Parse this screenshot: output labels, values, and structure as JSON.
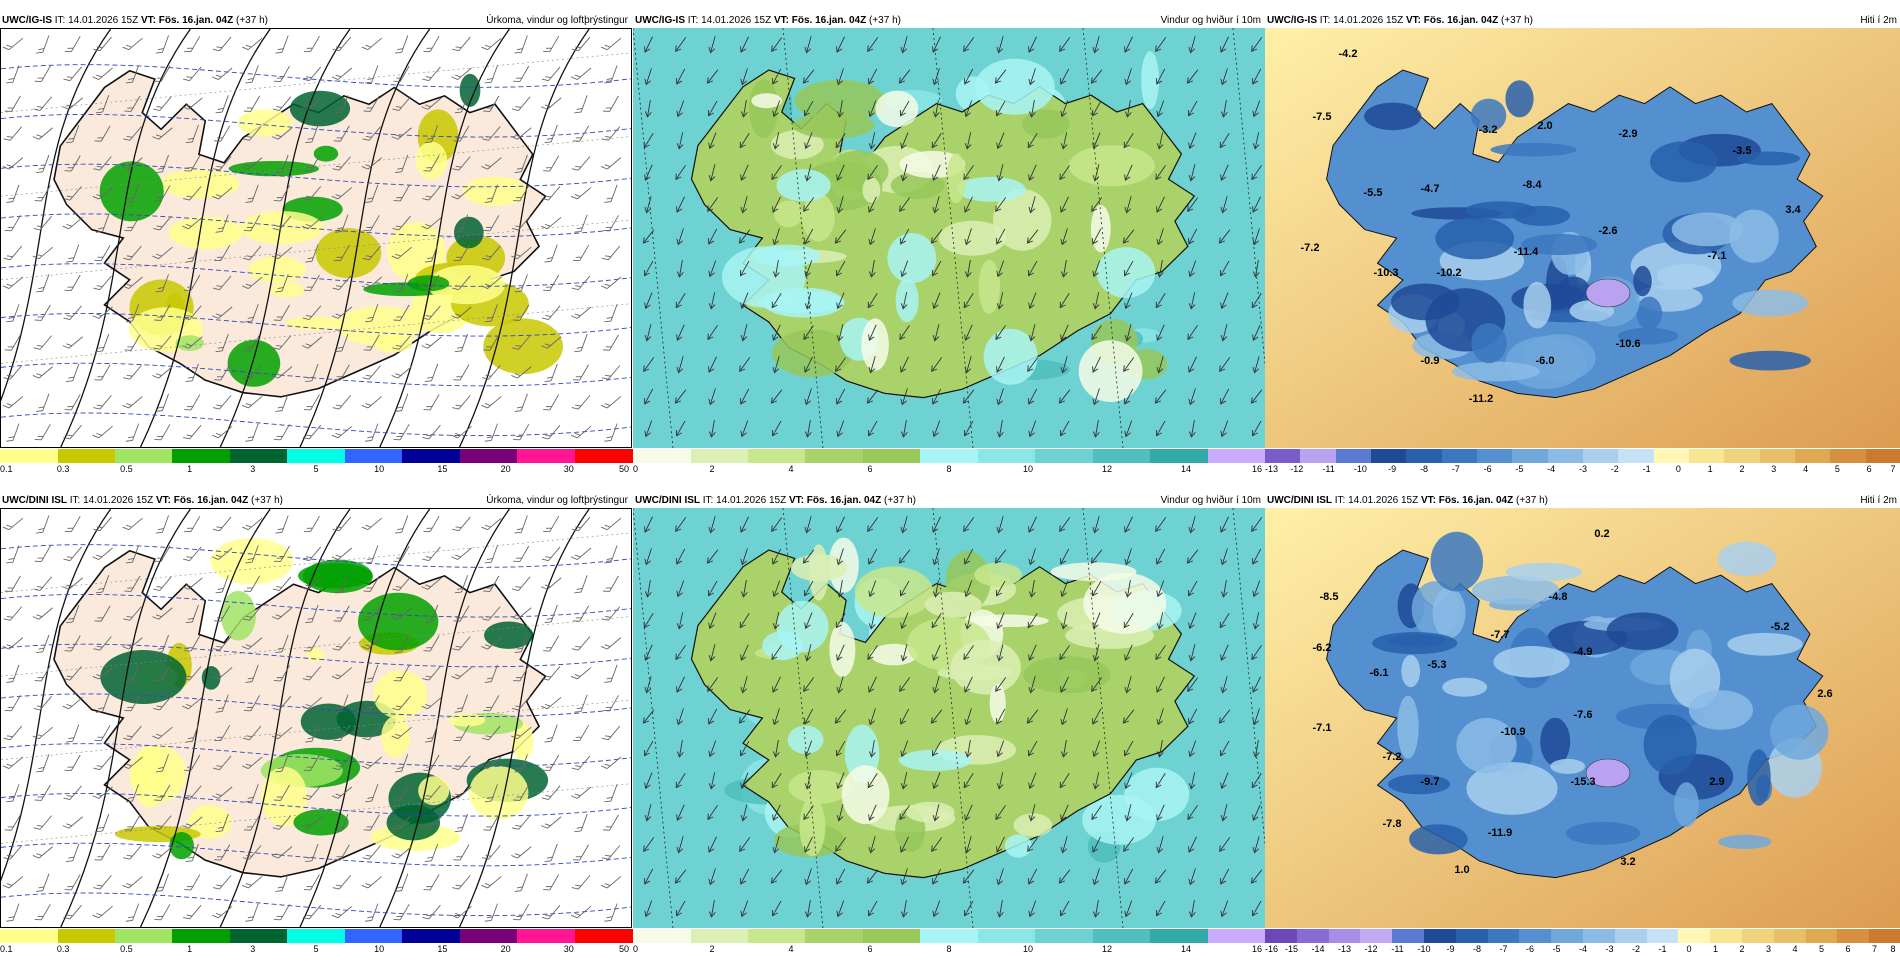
{
  "rows": [
    {
      "model": "UWC/IG-IS",
      "panels": [
        {
          "type": "precip",
          "title": "Úrkoma, vindur og loftþrýstingur",
          "it": "14.01.2026 15Z",
          "vt": "Fös. 16.jan. 04Z",
          "lead": "(+37 h)"
        },
        {
          "type": "wind",
          "title": "Vindur og hviður í 10m",
          "it": "14.01.2026 15Z",
          "vt": "Fös. 16.jan. 04Z",
          "lead": "(+37 h)"
        },
        {
          "type": "temp",
          "title": "Hiti í 2m",
          "it": "14.01.2026 15Z",
          "vt": "Fös. 16.jan. 04Z",
          "lead": "(+37 h)",
          "temps": [
            "-4.2",
            "-7.5",
            "-5.5",
            "-7.2",
            "-10.3",
            "-10.2",
            "-4.7",
            "-3.2",
            "2.0",
            "-8.4",
            "-11.4",
            "-2.9",
            "-3.5",
            "3.4",
            "-2.6",
            "-7.1",
            "-0.9",
            "-6.0",
            "-10.6",
            "-11.2"
          ]
        }
      ]
    },
    {
      "model": "UWC/DINI ISL",
      "panels": [
        {
          "type": "precip",
          "title": "Úrkoma, vindur og loftþrýstingur",
          "it": "14.01.2026 15Z",
          "vt": "Fös. 16.jan. 04Z",
          "lead": "(+37 h)"
        },
        {
          "type": "wind",
          "title": "Vindur og hviður í 10m",
          "it": "14.01.2026 15Z",
          "vt": "Fös. 16.jan. 04Z",
          "lead": "(+37 h)"
        },
        {
          "type": "temp",
          "title": "Hiti í 2m",
          "it": "14.01.2026 15Z",
          "vt": "Fös. 16.jan. 04Z",
          "lead": "(+37 h)",
          "temps": [
            "0.2",
            "-8.5",
            "-6.2",
            "-6.1",
            "-7.1",
            "-5.3",
            "-7.7",
            "-4.8",
            "-4.9",
            "-5.2",
            "2.6",
            "-10.9",
            "-7.6",
            "-15.3",
            "-7.2",
            "-9.7",
            "2.9",
            "-7.8",
            "-11.9",
            "1.0",
            "3.2"
          ]
        }
      ]
    }
  ],
  "labels": {
    "it": "IT:",
    "vt": "VT:"
  },
  "colorbars": {
    "precip": {
      "colors": [
        "#ffff8c",
        "#c8c800",
        "#a0e464",
        "#00a000",
        "#006432",
        "#00ffe6",
        "#3264ff",
        "#000096",
        "#780078",
        "#ff1493",
        "#ff0000"
      ],
      "ticks": [
        "0.1",
        "0.3",
        "0.5",
        "1",
        "3",
        "5",
        "10",
        "15",
        "20",
        "30",
        "50"
      ]
    },
    "wind": {
      "colors": [
        "#f5fbe6",
        "#dcefb4",
        "#c8e68c",
        "#a9d26b",
        "#96c85a",
        "#a8f5f5",
        "#8ce6e6",
        "#6ed2d2",
        "#50bebe",
        "#32aaaa",
        "#c8aaff"
      ],
      "ticks": [
        "0",
        "2",
        "4",
        "6",
        "8",
        "10",
        "12",
        "14",
        "16"
      ]
    },
    "temp_ig": {
      "colors": [
        "#7a5cc8",
        "#b9a3f0",
        "#5a7ad2",
        "#1e4a96",
        "#2860ac",
        "#3c78c0",
        "#5490d0",
        "#70a8dc",
        "#8cbce6",
        "#a8d0ee",
        "#c4e2f4",
        "#fff8b4",
        "#f8e694",
        "#f0d27c",
        "#e8be68",
        "#e0a850",
        "#d69040",
        "#cc7a30"
      ],
      "ticks": [
        "-13",
        "-12",
        "-11",
        "-10",
        "-9",
        "-8",
        "-7",
        "-6",
        "-5",
        "-4",
        "-3",
        "-2",
        "-1",
        "0",
        "1",
        "2",
        "3",
        "4",
        "5",
        "6",
        "7"
      ]
    },
    "temp_dini": {
      "colors": [
        "#6a48b8",
        "#8a6ad4",
        "#a88ce6",
        "#c4aaf2",
        "#5a7ad2",
        "#1e4a96",
        "#2860ac",
        "#3c78c0",
        "#5490d0",
        "#70a8dc",
        "#8cbce6",
        "#a8d0ee",
        "#c4e2f4",
        "#fff8b4",
        "#f8e694",
        "#f0d27c",
        "#e8be68",
        "#e0a850",
        "#d69040",
        "#cc7a30"
      ],
      "ticks": [
        "-16",
        "-15",
        "-14",
        "-13",
        "-12",
        "-11",
        "-10",
        "-9",
        "-8",
        "-7",
        "-6",
        "-5",
        "-4",
        "-3",
        "-2",
        "-1",
        "0",
        "1",
        "2",
        "3",
        "4",
        "5",
        "6",
        "7",
        "8"
      ]
    }
  }
}
